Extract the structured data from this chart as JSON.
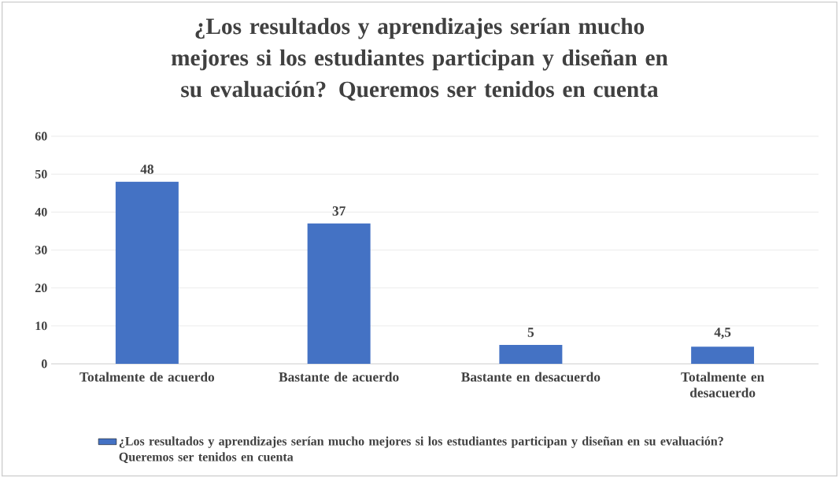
{
  "chart_data": {
    "type": "bar",
    "title": "¿Los resultados y aprendizajes serían mucho mejores si los estudiantes participan y diseñan en su evaluación? Queremos ser tenidos en cuenta",
    "categories": [
      "Totalmente de acuerdo",
      "Bastante de acuerdo",
      "Bastante en desacuerdo",
      "Totalmente en desacuerdo"
    ],
    "series": [
      {
        "name": "¿Los resultados y aprendizajes serían mucho mejores si los estudiantes participan y diseñan en su evaluación? Queremos ser tenidos en cuenta",
        "color": "#4472c4",
        "values": [
          48,
          37,
          5,
          4.5
        ],
        "value_labels": [
          "48",
          "37",
          "5",
          "4,5"
        ]
      }
    ],
    "ylim": [
      0,
      60
    ],
    "yticks": [
      0,
      10,
      20,
      30,
      40,
      50,
      60
    ],
    "grid": "y",
    "legend": "bottom"
  }
}
